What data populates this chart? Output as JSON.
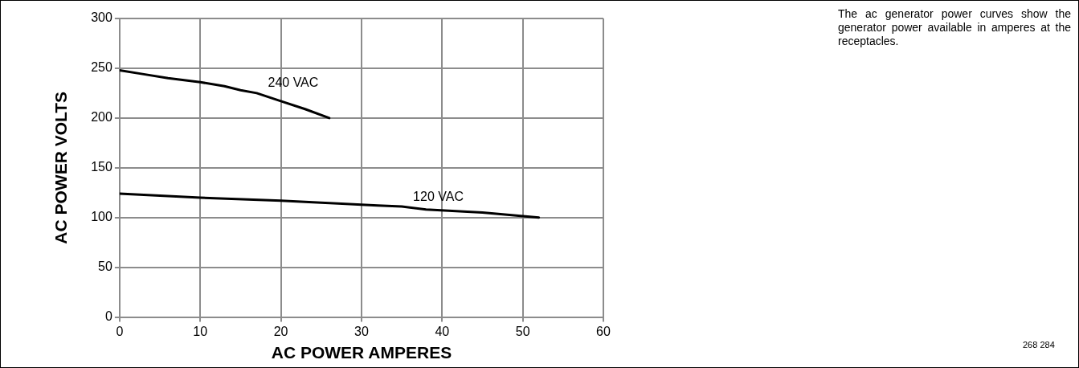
{
  "chart_data": {
    "type": "line",
    "xlabel": "AC POWER AMPERES",
    "ylabel": "AC POWER VOLTS",
    "xlim": [
      0,
      60
    ],
    "xticks": [
      0,
      10,
      20,
      30,
      40,
      50,
      60
    ],
    "ylim": [
      0,
      300
    ],
    "yticks": [
      0,
      50,
      100,
      150,
      200,
      250,
      300
    ],
    "grid": true,
    "legend": false,
    "marker": "none",
    "line_style": "solid",
    "series": [
      {
        "name": "240 VAC",
        "color": "#000000",
        "x": [
          0,
          3,
          6,
          10,
          13,
          15,
          17,
          20,
          23,
          26
        ],
        "values": [
          248,
          244,
          240,
          236,
          232,
          228,
          225,
          217,
          209,
          200
        ]
      },
      {
        "name": "120 VAC",
        "color": "#000000",
        "x": [
          0,
          10,
          20,
          25,
          30,
          32,
          35,
          38,
          45,
          52
        ],
        "values": [
          124,
          120,
          117,
          115,
          113,
          112,
          111,
          108,
          105,
          100
        ]
      }
    ],
    "annotations": [
      "The ac generator power curves show the generator power available in amperes at the receptacles.",
      "268 284"
    ]
  }
}
